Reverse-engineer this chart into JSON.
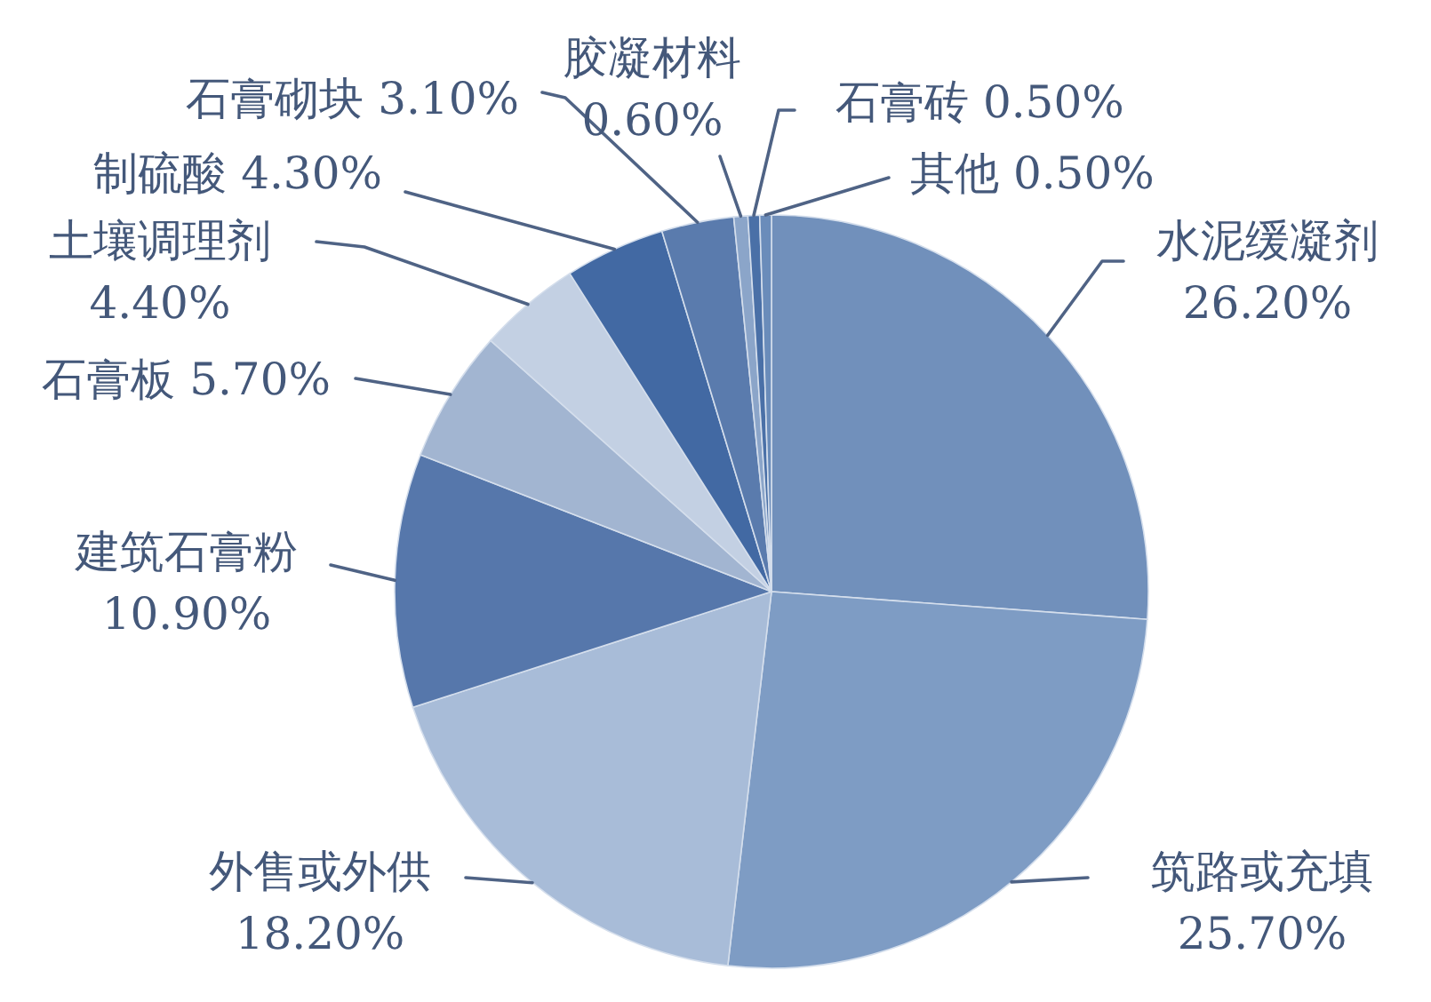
{
  "chart_data": {
    "type": "pie",
    "categories": [
      "水泥缓凝剂",
      "筑路或充填",
      "外售或外供",
      "建筑石膏粉",
      "石膏板",
      "土壤调理剂",
      "制硫酸",
      "石膏砌块",
      "胶凝材料",
      "石膏砖",
      "其他"
    ],
    "values": [
      26.2,
      25.7,
      18.2,
      10.9,
      5.7,
      4.4,
      4.3,
      3.1,
      0.6,
      0.5,
      0.5
    ],
    "value_labels": [
      "26.20%",
      "25.70%",
      "18.20%",
      "10.90%",
      "5.70%",
      "4.40%",
      "4.30%",
      "3.10%",
      "0.60%",
      "0.50%",
      "0.50%"
    ],
    "colors": [
      "#7190bb",
      "#7e9cc4",
      "#a8bcd8",
      "#5677ab",
      "#a2b5d1",
      "#c3d0e3",
      "#4269a3",
      "#5a7bad",
      "#8ba5c9",
      "#4a70a7",
      "#6a8cba"
    ]
  }
}
